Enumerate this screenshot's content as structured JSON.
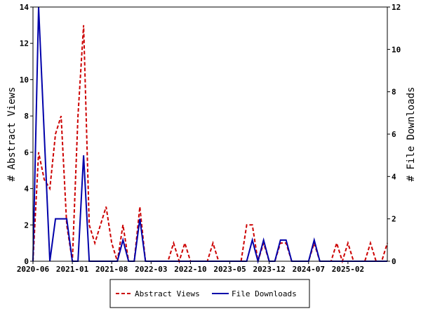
{
  "chart_data": {
    "type": "line",
    "ylabel_left": "# Abstract Views",
    "ylabel_right": "# File Downloads",
    "ylim_left": [
      0,
      14
    ],
    "ylim_right": [
      0,
      12
    ],
    "yticks_left": [
      0,
      2,
      4,
      6,
      8,
      10,
      12,
      14
    ],
    "yticks_right": [
      0,
      2,
      4,
      6,
      8,
      10,
      12
    ],
    "xlim": [
      "2020-06",
      "2025-09"
    ],
    "xticks": [
      "2020-06",
      "2021-01",
      "2021-08",
      "2022-03",
      "2022-10",
      "2023-05",
      "2023-12",
      "2024-07",
      "2025-02"
    ],
    "legend_position": "bottom",
    "series": [
      {
        "name": "Abstract Views",
        "axis": "left",
        "color": "#cc0000",
        "dash": true,
        "points": [
          [
            "2020-06",
            0
          ],
          [
            "2020-07",
            6
          ],
          [
            "2020-08",
            4.5
          ],
          [
            "2020-09",
            4
          ],
          [
            "2020-10",
            7
          ],
          [
            "2020-11",
            8
          ],
          [
            "2020-12",
            2
          ],
          [
            "2021-01",
            0
          ],
          [
            "2021-02",
            8
          ],
          [
            "2021-03",
            13
          ],
          [
            "2021-04",
            2
          ],
          [
            "2021-05",
            1
          ],
          [
            "2021-06",
            2
          ],
          [
            "2021-07",
            3
          ],
          [
            "2021-08",
            1
          ],
          [
            "2021-09",
            0
          ],
          [
            "2021-10",
            2
          ],
          [
            "2021-11",
            0
          ],
          [
            "2021-12",
            0
          ],
          [
            "2022-01",
            3
          ],
          [
            "2022-02",
            0
          ],
          [
            "2022-03",
            0
          ],
          [
            "2022-04",
            0
          ],
          [
            "2022-05",
            0
          ],
          [
            "2022-06",
            0
          ],
          [
            "2022-07",
            1
          ],
          [
            "2022-08",
            0
          ],
          [
            "2022-09",
            1
          ],
          [
            "2022-10",
            0
          ],
          [
            "2022-11",
            0
          ],
          [
            "2022-12",
            0
          ],
          [
            "2023-01",
            0
          ],
          [
            "2023-02",
            1
          ],
          [
            "2023-03",
            0
          ],
          [
            "2023-04",
            0
          ],
          [
            "2023-05",
            0
          ],
          [
            "2023-06",
            0
          ],
          [
            "2023-07",
            0
          ],
          [
            "2023-08",
            2
          ],
          [
            "2023-09",
            2
          ],
          [
            "2023-10",
            0
          ],
          [
            "2023-11",
            1
          ],
          [
            "2023-12",
            0
          ],
          [
            "2024-01",
            0
          ],
          [
            "2024-02",
            1
          ],
          [
            "2024-03",
            1
          ],
          [
            "2024-04",
            0
          ],
          [
            "2024-05",
            0
          ],
          [
            "2024-06",
            0
          ],
          [
            "2024-07",
            0
          ],
          [
            "2024-08",
            1
          ],
          [
            "2024-09",
            0
          ],
          [
            "2024-10",
            0
          ],
          [
            "2024-11",
            0
          ],
          [
            "2024-12",
            1
          ],
          [
            "2025-01",
            0
          ],
          [
            "2025-02",
            1
          ],
          [
            "2025-03",
            0
          ],
          [
            "2025-04",
            0
          ],
          [
            "2025-05",
            0
          ],
          [
            "2025-06",
            1
          ],
          [
            "2025-07",
            0
          ],
          [
            "2025-08",
            0
          ],
          [
            "2025-09",
            1
          ]
        ]
      },
      {
        "name": "File Downloads",
        "axis": "right",
        "color": "#0000aa",
        "dash": false,
        "points": [
          [
            "2020-06",
            0
          ],
          [
            "2020-07",
            12
          ],
          [
            "2020-08",
            6
          ],
          [
            "2020-09",
            0
          ],
          [
            "2020-10",
            2
          ],
          [
            "2020-11",
            2
          ],
          [
            "2020-12",
            2
          ],
          [
            "2021-01",
            0
          ],
          [
            "2021-02",
            0
          ],
          [
            "2021-03",
            5
          ],
          [
            "2021-04",
            0
          ],
          [
            "2021-05",
            0
          ],
          [
            "2021-06",
            0
          ],
          [
            "2021-07",
            0
          ],
          [
            "2021-08",
            0
          ],
          [
            "2021-09",
            0
          ],
          [
            "2021-10",
            1
          ],
          [
            "2021-11",
            0
          ],
          [
            "2021-12",
            0
          ],
          [
            "2022-01",
            2
          ],
          [
            "2022-02",
            0
          ],
          [
            "2022-03",
            0
          ],
          [
            "2022-04",
            0
          ],
          [
            "2022-05",
            0
          ],
          [
            "2022-06",
            0
          ],
          [
            "2022-07",
            0
          ],
          [
            "2022-08",
            0
          ],
          [
            "2022-09",
            0
          ],
          [
            "2022-10",
            0
          ],
          [
            "2022-11",
            0
          ],
          [
            "2022-12",
            0
          ],
          [
            "2023-01",
            0
          ],
          [
            "2023-02",
            0
          ],
          [
            "2023-03",
            0
          ],
          [
            "2023-04",
            0
          ],
          [
            "2023-05",
            0
          ],
          [
            "2023-06",
            0
          ],
          [
            "2023-07",
            0
          ],
          [
            "2023-08",
            0
          ],
          [
            "2023-09",
            1
          ],
          [
            "2023-10",
            0
          ],
          [
            "2023-11",
            1
          ],
          [
            "2023-12",
            0
          ],
          [
            "2024-01",
            0
          ],
          [
            "2024-02",
            1
          ],
          [
            "2024-03",
            1
          ],
          [
            "2024-04",
            0
          ],
          [
            "2024-05",
            0
          ],
          [
            "2024-06",
            0
          ],
          [
            "2024-07",
            0
          ],
          [
            "2024-08",
            1
          ],
          [
            "2024-09",
            0
          ],
          [
            "2024-10",
            0
          ],
          [
            "2024-11",
            0
          ],
          [
            "2024-12",
            0
          ],
          [
            "2025-01",
            0
          ],
          [
            "2025-02",
            0
          ],
          [
            "2025-03",
            0
          ],
          [
            "2025-04",
            0
          ],
          [
            "2025-05",
            0
          ],
          [
            "2025-06",
            0
          ],
          [
            "2025-07",
            0
          ],
          [
            "2025-08",
            0
          ],
          [
            "2025-09",
            0
          ]
        ]
      }
    ]
  }
}
